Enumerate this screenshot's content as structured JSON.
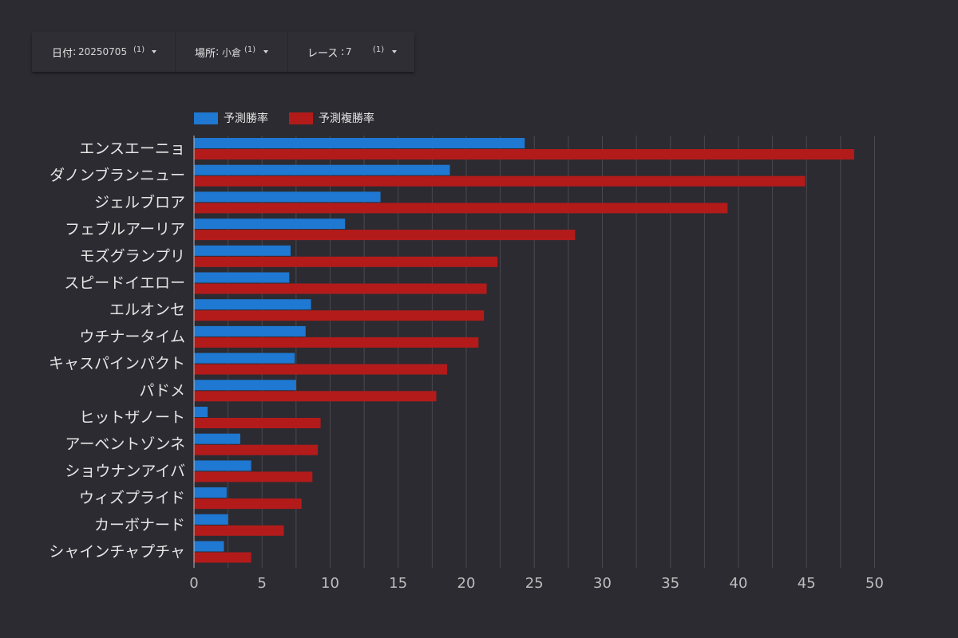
{
  "filters": [
    {
      "label": "日付",
      "value": "20250705",
      "count": "(1)",
      "icon": "caret-down-icon"
    },
    {
      "label": "場所",
      "value": "小倉",
      "count": "(1)",
      "icon": "caret-down-icon"
    },
    {
      "label": "レース",
      "value": "7",
      "count": "(1)",
      "icon": "caret-down-icon"
    }
  ],
  "chart_data": {
    "type": "bar",
    "orientation": "horizontal",
    "categories": [
      "エンスエーニョ",
      "ダノンブランニュー",
      "ジェルブロア",
      "フェブルアーリア",
      "モズグランプリ",
      "スピードイエロー",
      "エルオンセ",
      "ウチナータイム",
      "キャスパインパクト",
      "パドメ",
      "ヒットザノート",
      "アーベントゾンネ",
      "ショウナンアイバ",
      "ウィズプライド",
      "カーボナード",
      "シャインチャプチャ"
    ],
    "series": [
      {
        "name": "予測勝率",
        "color": "#1f78d1",
        "values": [
          24.3,
          18.8,
          13.7,
          11.1,
          7.1,
          7.0,
          8.6,
          8.2,
          7.4,
          7.5,
          1.0,
          3.4,
          4.2,
          2.4,
          2.5,
          2.2
        ]
      },
      {
        "name": "予測複勝率",
        "color": "#b31b1b",
        "values": [
          48.5,
          44.9,
          39.2,
          28.0,
          22.3,
          21.5,
          21.3,
          20.9,
          18.6,
          17.8,
          9.3,
          9.1,
          8.7,
          7.9,
          6.6,
          4.2
        ]
      }
    ],
    "xlim": [
      0,
      50
    ],
    "xticks": [
      0,
      5,
      10,
      15,
      20,
      25,
      30,
      35,
      40,
      45,
      50
    ],
    "grid": true,
    "legend": "top-left",
    "title": "",
    "xlabel": "",
    "ylabel": ""
  }
}
